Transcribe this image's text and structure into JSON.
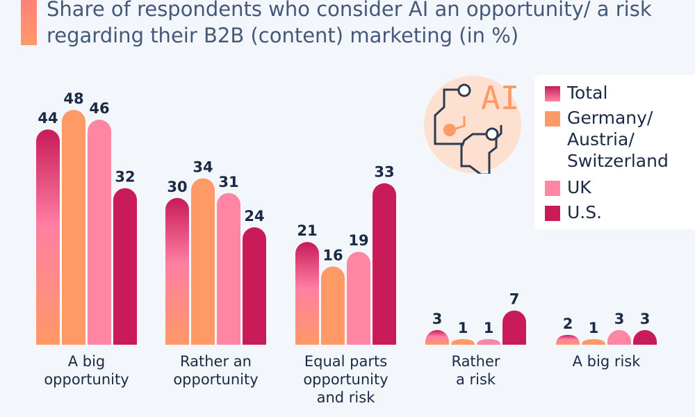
{
  "title": "Share of respondents who consider AI an opportunity/ a risk regarding their B2B (content) marketing (in %)",
  "icon": {
    "name": "ai-brain-circuit-icon",
    "text": "AI"
  },
  "colors": {
    "total_top": "#c81b58",
    "total_mid": "#ff7fa3",
    "total_bottom": "#ff9966",
    "germany": "#ff9966",
    "uk": "#ff85a5",
    "us": "#c81b58",
    "label": "#1b2a44"
  },
  "chart_data": {
    "type": "bar",
    "title": "Share of respondents who consider AI an opportunity/ a risk regarding their B2B (content) marketing (in %)",
    "xlabel": "",
    "ylabel": "",
    "ylim": [
      0,
      48
    ],
    "grid": false,
    "legend_position": "top-right",
    "categories": [
      "A big\nopportunity",
      "Rather an\nopportunity",
      "Equal parts\nopportunity\nand risk",
      "Rather\na risk",
      "A big risk"
    ],
    "series": [
      {
        "name": "Total",
        "values": [
          44,
          30,
          21,
          3,
          2
        ]
      },
      {
        "name": "Germany/\nAustria/\nSwitzerland",
        "values": [
          48,
          34,
          16,
          1,
          1
        ]
      },
      {
        "name": "UK",
        "values": [
          46,
          31,
          19,
          1,
          3
        ]
      },
      {
        "name": "U.S.",
        "values": [
          32,
          24,
          33,
          7,
          3
        ]
      }
    ]
  }
}
